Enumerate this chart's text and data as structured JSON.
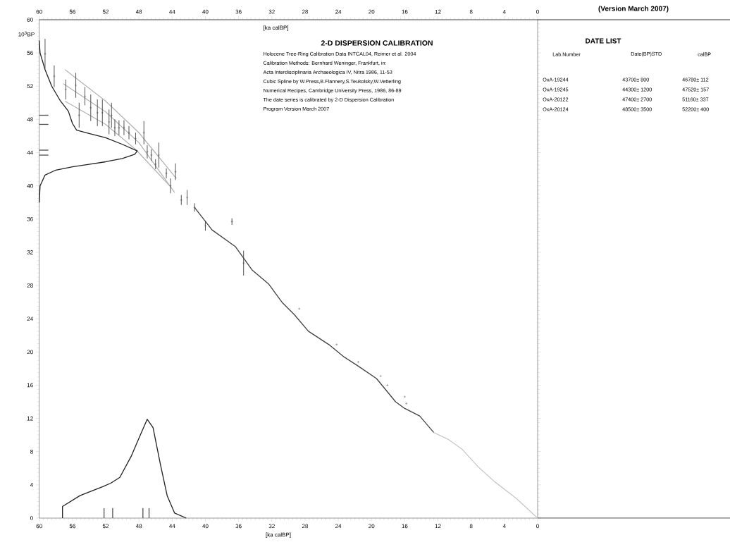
{
  "chart_data": [
    {
      "type": "scatter",
      "title": "2-D DISPERSION CALIBRATION",
      "xlabel": "[ka calBP]",
      "x2label": "[ka calBP]",
      "ylabel": "10$^{3}$BP",
      "annotations": [
        "Holocene Tree-Ring Calibration Data INTCAL04, Reimer et al. 2004",
        "Calibration Methods:  Bernhard Weninger, Frankfurt, in:",
        "Acta Interdisciplinaria Archaeologica IV, Nitra 1986, 11-53",
        "Cubic Spline by W.Press,B.Flannery,S.Teukolsky,W.Vetterling",
        "Numerical Recipes, Cambridge University Press, 1986, 86-89",
        "The date series is calibrated by 2-D Dispersion Calibration",
        "Program Version March 2007"
      ],
      "xlim": [
        60,
        0
      ],
      "xticks": [
        60,
        56,
        52,
        48,
        44,
        40,
        36,
        32,
        28,
        24,
        20,
        16,
        12,
        8,
        4,
        0
      ],
      "x2lim": [
        60,
        0
      ],
      "x2ticks": [
        60,
        56,
        52,
        48,
        44,
        40,
        36,
        32,
        28,
        24,
        20,
        16,
        12,
        8,
        4,
        0
      ],
      "ylim": [
        0,
        60
      ],
      "yticks": [
        0,
        4,
        8,
        12,
        16,
        20,
        24,
        28,
        32,
        36,
        40,
        44,
        48,
        52,
        56,
        60
      ],
      "series": [
        {
          "type": "scatter",
          "marker": "cross",
          "color": "#404040",
          "x": [
            59.3,
            58.2,
            56.8,
            55.6,
            55.2,
            54.5,
            53.8,
            53.0,
            52.4,
            51.6,
            51.3,
            50.9,
            50.4,
            49.8,
            49.2,
            48.4,
            47.4,
            47.0,
            46.5,
            46.0,
            45.6,
            44.7,
            44.2,
            43.6,
            42.9,
            42.2,
            41.3,
            40.0,
            36.8,
            35.4,
            28.7,
            24.2,
            21.6,
            18.9,
            18.1,
            16.0,
            15.8
          ],
          "values": [
            55.9,
            53.2,
            51.6,
            52.1,
            48.5,
            50.8,
            49.4,
            48.8,
            48.8,
            47.7,
            48.5,
            47.0,
            47.0,
            47.0,
            46.4,
            45.7,
            46.4,
            44.1,
            43.7,
            42.6,
            43.7,
            41.5,
            40.0,
            41.7,
            38.3,
            38.6,
            37.4,
            35.2,
            35.7,
            30.7,
            25.2,
            20.9,
            18.8,
            17.1,
            16.0,
            14.6,
            13.8
          ],
          "errors": [
            1.8,
            1.3,
            1.2,
            1.5,
            1.5,
            1.1,
            1.6,
            1.6,
            1.6,
            1.5,
            1.5,
            1.0,
            0.9,
            0.9,
            0.8,
            0.7,
            1.4,
            0.8,
            0.7,
            0.6,
            1.5,
            0.6,
            0.9,
            1.0,
            0.6,
            0.9,
            0.5,
            0.6,
            0.4,
            1.5,
            null,
            null,
            null,
            null,
            null,
            null,
            null
          ]
        },
        {
          "type": "line",
          "marker": "none",
          "color": "#404040",
          "x": [
            41.3,
            39.2,
            36.4,
            34.4,
            32.4,
            30.7,
            29.3,
            27.6,
            25.0,
            23.3,
            21.6,
            19.4,
            17.1,
            16.0,
            14.2,
            12.5
          ],
          "values": [
            37.4,
            34.7,
            32.7,
            29.9,
            28.2,
            25.9,
            24.5,
            22.5,
            20.8,
            19.4,
            18.3,
            16.8,
            14.0,
            13.2,
            12.3,
            10.3
          ]
        },
        {
          "type": "line",
          "marker": "none",
          "color": "#c8c8c8",
          "x": [
            12.5,
            10.8,
            9.1,
            7.1,
            5.2,
            2.6,
            0
          ],
          "values": [
            10.3,
            9.5,
            8.3,
            6.1,
            4.4,
            2.4,
            0
          ]
        },
        {
          "type": "line",
          "marker": "none",
          "color": "#b4b4b4",
          "x": [
            56.9,
            52,
            48,
            43.5
          ],
          "values": [
            54.0,
            50.2,
            46.4,
            40.9
          ]
        },
        {
          "type": "line",
          "marker": "none",
          "color": "#b4b4b4",
          "x": [
            57.1,
            52,
            48,
            43.7
          ],
          "values": [
            52.3,
            48.9,
            45.2,
            39.2
          ]
        },
        {
          "type": "line",
          "marker": "none",
          "color": "#b4b4b4",
          "x": [
            56.9,
            52,
            48.3,
            44.3
          ],
          "values": [
            50.2,
            47.4,
            44.3,
            40.0
          ]
        },
        {
          "type": "line",
          "marker": "none",
          "color": "#202020",
          "x": [
            60,
            59.9,
            59.3,
            58.5,
            57.5,
            56.5,
            56.0,
            55.5,
            54,
            52,
            50,
            48.2,
            48.5,
            50,
            52,
            54,
            56,
            58,
            59.3,
            59.9,
            60
          ],
          "values": [
            57.5,
            56,
            54,
            52,
            50.3,
            49,
            47.5,
            46.7,
            46.3,
            45.8,
            45,
            44.2,
            43.8,
            43.3,
            42.9,
            42.6,
            42.3,
            41.9,
            41.3,
            40,
            38
          ]
        },
        {
          "type": "line",
          "marker": "none",
          "color": "#202020",
          "x": [
            57.2,
            57.2,
            55.1,
            52.3,
            51.4,
            50.3,
            48.9,
            47.7,
            47.0,
            46.3,
            45.4,
            44.6,
            43.7,
            42.3
          ],
          "values": [
            0,
            1.4,
            2.7,
            3.8,
            4.2,
            4.9,
            7.5,
            10.3,
            11.9,
            10.9,
            6.4,
            2.7,
            0.6,
            0
          ]
        },
        {
          "type": "line",
          "marker": "none",
          "color": "#505050",
          "x": [
            60,
            58.9
          ],
          "values": [
            48.5,
            48.5
          ]
        },
        {
          "type": "line",
          "marker": "none",
          "color": "#505050",
          "x": [
            60,
            58.9
          ],
          "values": [
            47.4,
            47.4
          ]
        },
        {
          "type": "line",
          "marker": "none",
          "color": "#505050",
          "x": [
            60,
            58.9
          ],
          "values": [
            44.3,
            44.3
          ]
        },
        {
          "type": "line",
          "marker": "none",
          "color": "#505050",
          "x": [
            60,
            58.9
          ],
          "values": [
            43.7,
            43.7
          ]
        },
        {
          "type": "line",
          "marker": "none",
          "color": "#505050",
          "x": [
            52.2,
            52.2
          ],
          "values": [
            0,
            1.2
          ]
        },
        {
          "type": "line",
          "marker": "none",
          "color": "#505050",
          "x": [
            51.16,
            51.16
          ],
          "values": [
            0,
            1.2
          ]
        },
        {
          "type": "line",
          "marker": "none",
          "color": "#505050",
          "x": [
            47.52,
            47.52
          ],
          "values": [
            0,
            1.2
          ]
        },
        {
          "type": "line",
          "marker": "none",
          "color": "#505050",
          "x": [
            46.78,
            46.78
          ],
          "values": [
            0,
            1.2
          ]
        }
      ]
    },
    {
      "type": "other",
      "title": "(Version March 2007)",
      "subtitle": "DATE LIST",
      "annotations": [
        "Lab.Number",
        "Date(BP)STD",
        "calBP",
        "OxA-19244",
        "43700±  800",
        "46780±  112",
        "OxA-19245",
        "44300±  1200",
        "47520±  157",
        "OxA-20122",
        "47400±  2700",
        "51160±  337",
        "OxA-20124",
        "48500±  3500",
        "52200±  400"
      ]
    }
  ]
}
